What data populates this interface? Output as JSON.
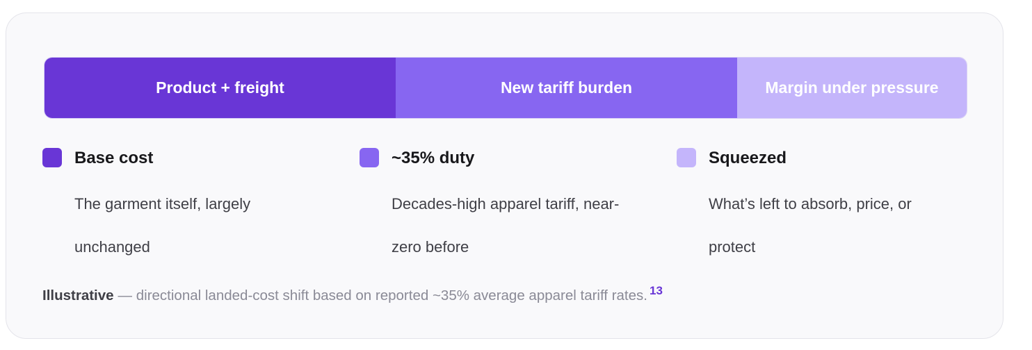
{
  "bar": {
    "segments": [
      "Product + freight",
      "New tariff burden",
      "Margin under pressure"
    ]
  },
  "legend": [
    {
      "title": "Base cost",
      "description": "The garment itself, largely unchanged"
    },
    {
      "title": "~35% duty",
      "description": "Decades-high apparel tariff, near-zero before"
    },
    {
      "title": "Squeezed",
      "description": "What’s left to absorb, price, or protect"
    }
  ],
  "footnote": {
    "label": "Illustrative",
    "text": "— directional landed-cost shift based on reported ~35% average apparel tariff rates.",
    "reference": "13"
  }
}
